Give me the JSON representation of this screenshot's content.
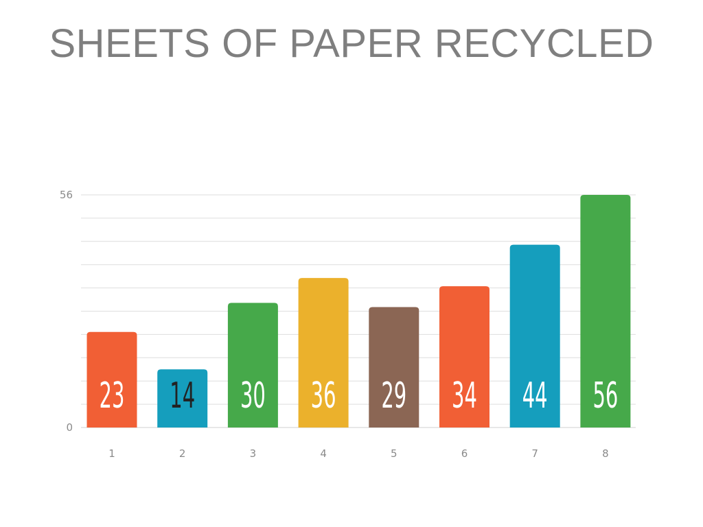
{
  "title": "SHEETS OF PAPER RECYCLED",
  "chart_data": {
    "type": "bar",
    "title": "SHEETS OF PAPER RECYCLED",
    "categories": [
      "1",
      "2",
      "3",
      "4",
      "5",
      "6",
      "7",
      "8"
    ],
    "values": [
      23,
      14,
      30,
      36,
      29,
      34,
      44,
      56
    ],
    "colors": [
      "#f15f35",
      "#159ebd",
      "#46a94a",
      "#ebb12c",
      "#8b6654",
      "#f15f35",
      "#159ebd",
      "#46a94a"
    ],
    "label_colors": [
      "#ffffff",
      "#222222",
      "#ffffff",
      "#ffffff",
      "#ffffff",
      "#ffffff",
      "#ffffff",
      "#ffffff"
    ],
    "ylim": [
      0,
      56
    ],
    "yticks_labeled": [
      "0",
      "56"
    ],
    "grid": true,
    "xlabel": "",
    "ylabel": ""
  }
}
